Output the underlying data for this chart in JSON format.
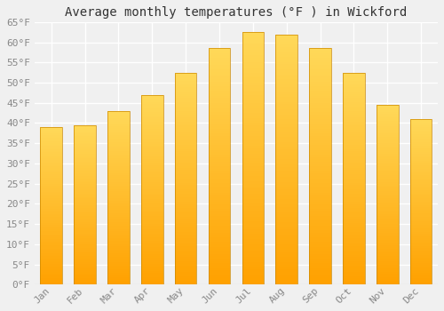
{
  "title": "Average monthly temperatures (°F ) in Wickford",
  "months": [
    "Jan",
    "Feb",
    "Mar",
    "Apr",
    "May",
    "Jun",
    "Jul",
    "Aug",
    "Sep",
    "Oct",
    "Nov",
    "Dec"
  ],
  "values": [
    39,
    39.5,
    43,
    47,
    52.5,
    58.5,
    62.5,
    62,
    58.5,
    52.5,
    44.5,
    41
  ],
  "bar_color_bottom": "#FFA000",
  "bar_color_top": "#FFD060",
  "bar_edge_color": "#CC8800",
  "ylim": [
    0,
    65
  ],
  "yticks": [
    0,
    5,
    10,
    15,
    20,
    25,
    30,
    35,
    40,
    45,
    50,
    55,
    60,
    65
  ],
  "background_color": "#f0f0f0",
  "grid_color": "#ffffff",
  "title_fontsize": 10,
  "tick_fontsize": 8
}
